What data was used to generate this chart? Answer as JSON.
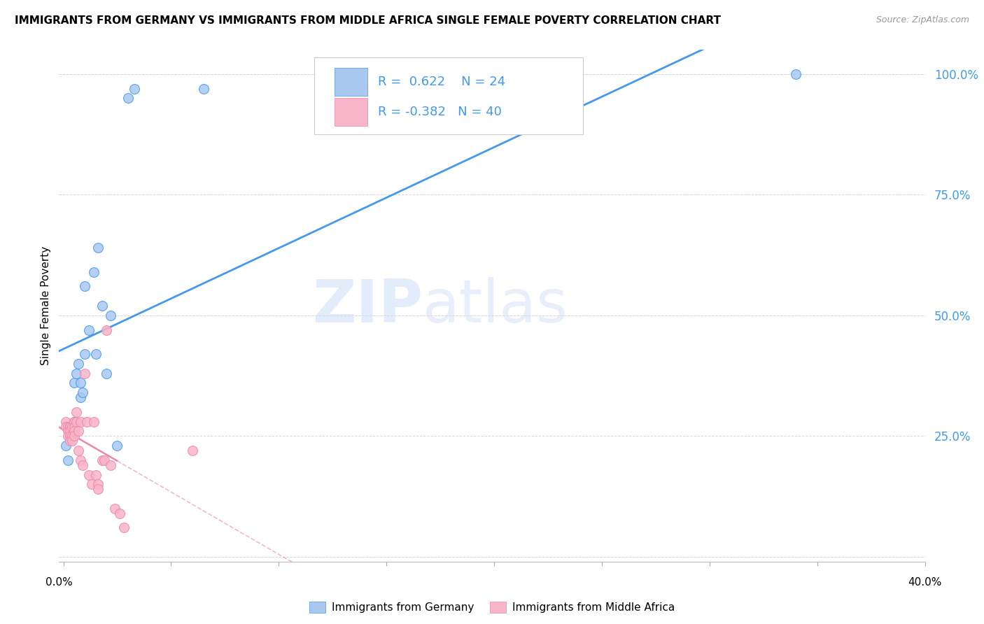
{
  "title": "IMMIGRANTS FROM GERMANY VS IMMIGRANTS FROM MIDDLE AFRICA SINGLE FEMALE POVERTY CORRELATION CHART",
  "source": "Source: ZipAtlas.com",
  "ylabel": "Single Female Poverty",
  "r_germany": 0.622,
  "n_germany": 24,
  "r_africa": -0.382,
  "n_africa": 40,
  "germany_color": "#a8c8f0",
  "africa_color": "#f8b4c8",
  "germany_line_color": "#4499ee",
  "africa_line_color": "#ee88aa",
  "tick_label_color": "#4499ee",
  "watermark_zip": "ZIP",
  "watermark_atlas": "atlas",
  "germany_x": [
    0.001,
    0.002,
    0.003,
    0.005,
    0.005,
    0.006,
    0.007,
    0.008,
    0.008,
    0.009,
    0.01,
    0.01,
    0.012,
    0.014,
    0.015,
    0.016,
    0.018,
    0.02,
    0.022,
    0.025,
    0.03,
    0.033,
    0.065,
    0.34
  ],
  "germany_y": [
    0.23,
    0.2,
    0.26,
    0.36,
    0.28,
    0.38,
    0.4,
    0.36,
    0.33,
    0.34,
    0.42,
    0.56,
    0.47,
    0.59,
    0.42,
    0.64,
    0.52,
    0.38,
    0.5,
    0.23,
    0.95,
    0.97,
    0.97,
    1.0
  ],
  "africa_x": [
    0.001,
    0.001,
    0.002,
    0.002,
    0.002,
    0.003,
    0.003,
    0.003,
    0.003,
    0.003,
    0.004,
    0.004,
    0.004,
    0.005,
    0.005,
    0.005,
    0.005,
    0.006,
    0.006,
    0.007,
    0.007,
    0.008,
    0.008,
    0.009,
    0.01,
    0.011,
    0.012,
    0.013,
    0.014,
    0.015,
    0.016,
    0.016,
    0.018,
    0.019,
    0.02,
    0.022,
    0.024,
    0.026,
    0.028,
    0.06
  ],
  "africa_y": [
    0.28,
    0.27,
    0.27,
    0.26,
    0.25,
    0.27,
    0.27,
    0.26,
    0.25,
    0.24,
    0.27,
    0.25,
    0.24,
    0.28,
    0.27,
    0.26,
    0.25,
    0.3,
    0.28,
    0.26,
    0.22,
    0.28,
    0.2,
    0.19,
    0.38,
    0.28,
    0.17,
    0.15,
    0.28,
    0.17,
    0.15,
    0.14,
    0.2,
    0.2,
    0.47,
    0.19,
    0.1,
    0.09,
    0.06,
    0.22
  ],
  "xlim": [
    0.0,
    0.4
  ],
  "ylim": [
    0.0,
    1.05
  ],
  "xmin": -0.002,
  "yticks": [
    0.0,
    0.25,
    0.5,
    0.75,
    1.0
  ],
  "ytick_labels": [
    "",
    "25.0%",
    "50.0%",
    "75.0%",
    "100.0%"
  ]
}
